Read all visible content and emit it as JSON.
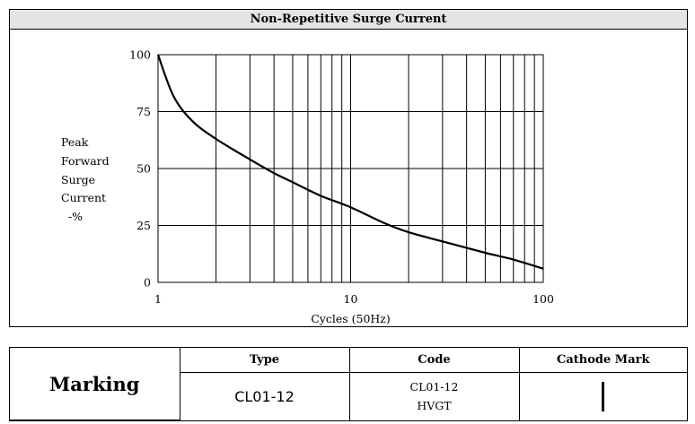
{
  "chart_data": {
    "type": "line",
    "title": "Non-Repetitive Surge Current",
    "xlabel": "Cycles (50Hz)",
    "ylabel_lines": [
      "Peak",
      "Forward",
      "Surge",
      "Current",
      "  -%"
    ],
    "x_scale": "log",
    "xlim": [
      1,
      100
    ],
    "ylim": [
      0,
      100
    ],
    "x_ticks": [
      1,
      10,
      100
    ],
    "y_ticks": [
      0,
      25,
      50,
      75,
      100
    ],
    "grid": true,
    "series": [
      {
        "x": [
          1,
          1.2,
          1.5,
          2,
          3,
          4,
          5,
          7,
          10,
          15,
          20,
          30,
          50,
          70,
          100
        ],
        "y": [
          100,
          82,
          71,
          63,
          54,
          48,
          44,
          38,
          33,
          26,
          22,
          18,
          13,
          10,
          6
        ]
      }
    ]
  },
  "marking": {
    "label": "Marking",
    "headers": [
      "Type",
      "Code",
      "Cathode Mark"
    ],
    "type_value": "CL01-12",
    "code_lines": [
      "CL01-12",
      "HVGT"
    ]
  }
}
